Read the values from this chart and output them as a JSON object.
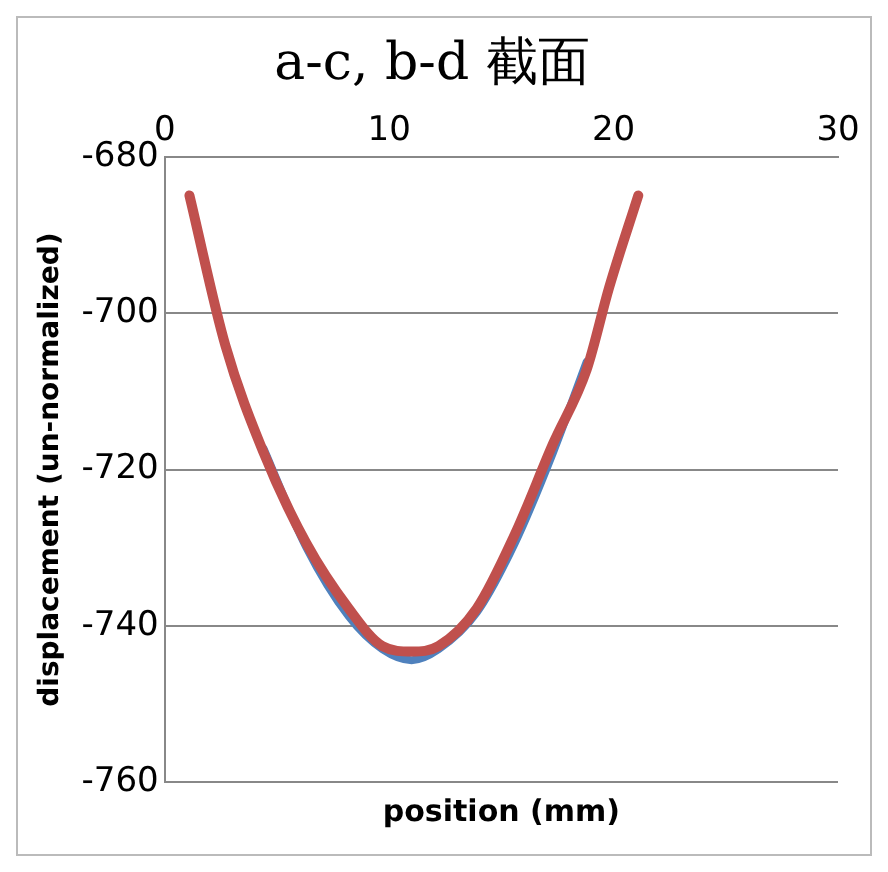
{
  "chart_data": {
    "type": "line",
    "title": "a-c, b-d 截面",
    "xlabel": "position (mm)",
    "ylabel": "displacement (un-normalized)",
    "x": [
      1.1,
      2.7,
      4.4,
      6.3,
      8.2,
      9.7,
      11,
      12.2,
      13.9,
      15.6,
      17.3,
      18.8,
      19.8,
      21.1
    ],
    "series": [
      {
        "color": "#4f81bd",
        "values": [
          null,
          null,
          -717.3,
          -729.9,
          -738.8,
          -743,
          -744.4,
          -743,
          -738.3,
          -729.4,
          -717.8,
          -706.2,
          null,
          null
        ]
      },
      {
        "color": "#c0504d",
        "values": [
          -684.9,
          -704.1,
          -717.8,
          -729.4,
          -737.8,
          -742.6,
          -743.3,
          -742.6,
          -737.8,
          -728.3,
          -716.7,
          -707.2,
          -696.7,
          -684.9
        ]
      }
    ],
    "xlim": [
      0,
      30
    ],
    "xticks": [
      0,
      10,
      20,
      30
    ],
    "ylim": [
      -760,
      -680
    ],
    "yticks": [
      -760,
      -740,
      -720,
      -700,
      -680
    ],
    "grid": "y",
    "legend": false,
    "marker": "none",
    "line_style": "solid"
  }
}
